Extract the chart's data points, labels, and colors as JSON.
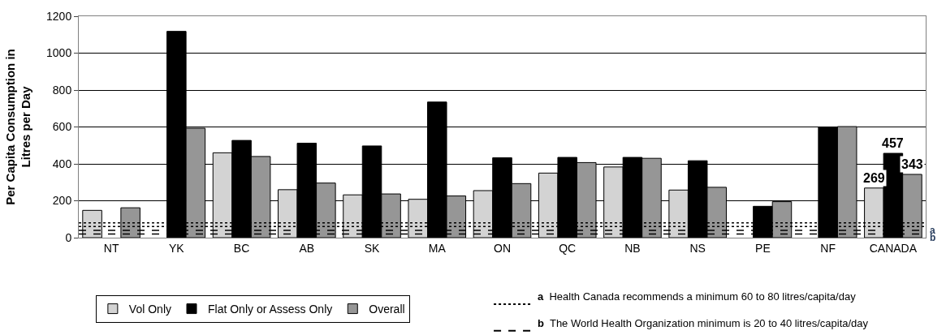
{
  "chart_data": {
    "type": "bar",
    "ylabel": "Per Capita Consumption in Litres per Day",
    "categories": [
      "NT",
      "YK",
      "BC",
      "AB",
      "SK",
      "MA",
      "ON",
      "QC",
      "NB",
      "NS",
      "PE",
      "NF",
      "CANADA"
    ],
    "series": [
      {
        "name": "Vol Only",
        "color": "#d3d3d3",
        "values": [
          148,
          null,
          460,
          260,
          232,
          208,
          255,
          350,
          383,
          258,
          null,
          null,
          269
        ],
        "value_labels": [
          null,
          null,
          null,
          null,
          null,
          null,
          null,
          null,
          null,
          null,
          null,
          null,
          "269"
        ]
      },
      {
        "name": "Flat Only or Assess Only",
        "color": "#000000",
        "values": [
          null,
          1118,
          527,
          512,
          497,
          735,
          433,
          435,
          435,
          417,
          170,
          600,
          457
        ],
        "value_labels": [
          null,
          null,
          null,
          null,
          null,
          null,
          null,
          null,
          null,
          null,
          null,
          null,
          "457"
        ]
      },
      {
        "name": "Overall",
        "color": "#969696",
        "values": [
          162,
          593,
          440,
          296,
          237,
          226,
          293,
          407,
          430,
          273,
          195,
          602,
          343
        ],
        "value_labels": [
          null,
          null,
          null,
          null,
          null,
          null,
          null,
          null,
          null,
          null,
          null,
          null,
          "343"
        ]
      }
    ],
    "ylim": [
      0,
      1200
    ],
    "yticks": [
      0,
      200,
      400,
      600,
      800,
      1000,
      1200
    ],
    "grid": "y",
    "legend": "bottom left",
    "ref_lines": [
      {
        "axis": "y",
        "value": 80,
        "label": "a",
        "line_style": "dotted",
        "color": "#000000"
      },
      {
        "axis": "y",
        "value": 60,
        "line_style": "dotted",
        "color": "#000000"
      },
      {
        "axis": "y",
        "value": 40,
        "label": "b",
        "line_style": "dashed",
        "color": "#000000"
      },
      {
        "axis": "y",
        "value": 20,
        "line_style": "dashed",
        "color": "#000000"
      }
    ],
    "annotations": [
      "Health Canada recommends a minimum 60 to 80 litres/capita/day",
      "The World Health Organization minimum is 20 to 40 litres/capita/day"
    ]
  }
}
